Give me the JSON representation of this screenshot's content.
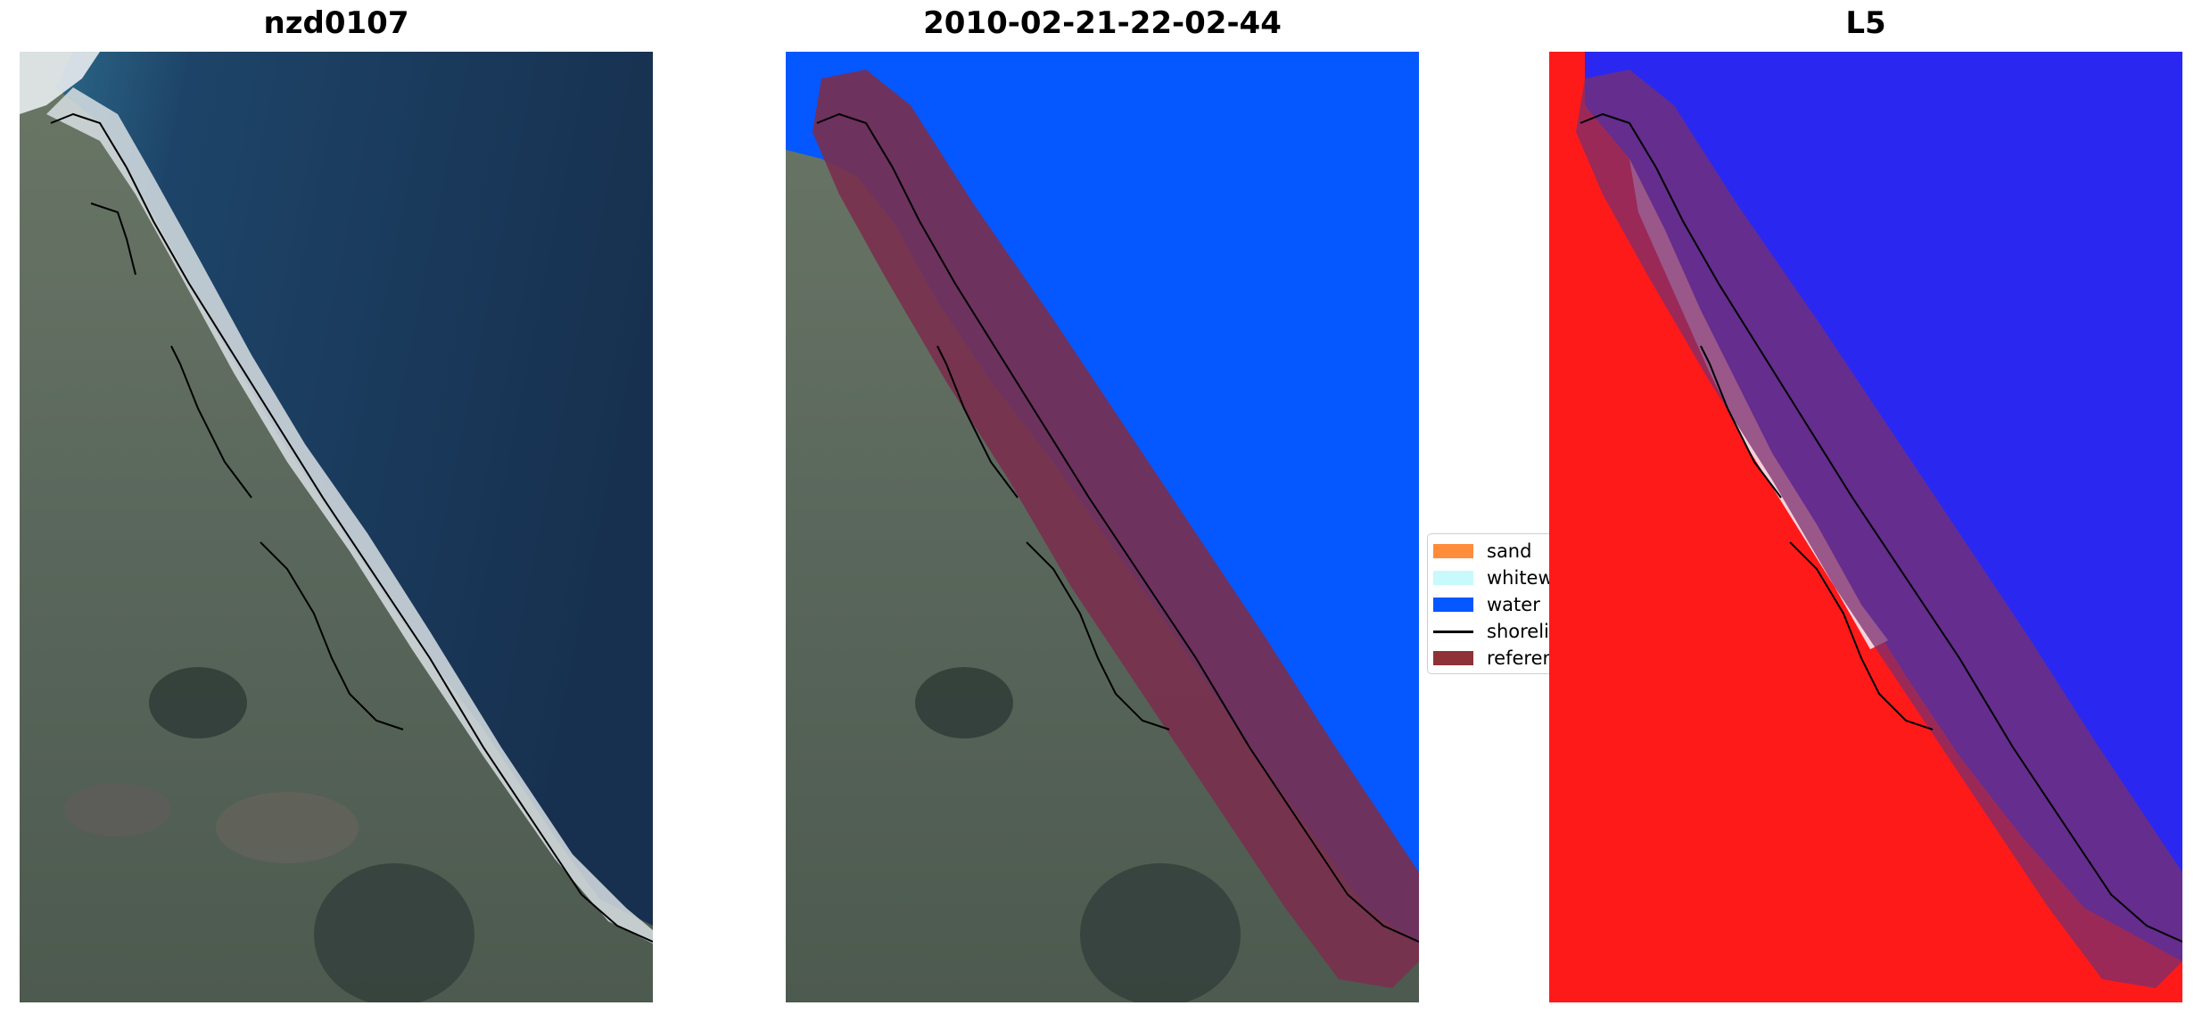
{
  "panels": [
    {
      "title": "nzd0107",
      "view": "satellite-rgb-image"
    },
    {
      "title": "2010-02-21-22-02-44",
      "view": "classified-image-overlay"
    },
    {
      "title": "L5",
      "view": "water-index-image"
    }
  ],
  "legend": {
    "items": [
      {
        "label": "sand",
        "color": "#ff8c3a",
        "kind": "patch"
      },
      {
        "label": "whitewater",
        "color": "#c8fafc",
        "kind": "patch"
      },
      {
        "label": "water",
        "color": "#0557ff",
        "kind": "patch"
      },
      {
        "label": "shoreline",
        "color": "#000000",
        "kind": "line"
      },
      {
        "label": "reference shoreline buffer",
        "color": "#8e3238",
        "kind": "patch"
      }
    ]
  },
  "colors": {
    "ocean": "#1c3558",
    "land": "#5b6a5e",
    "beach": "#dde4e8",
    "classified_water": "#0557ff",
    "buffer": "#7a2f4e",
    "index_land": "#ff1515",
    "index_water": "#2a28f0"
  }
}
